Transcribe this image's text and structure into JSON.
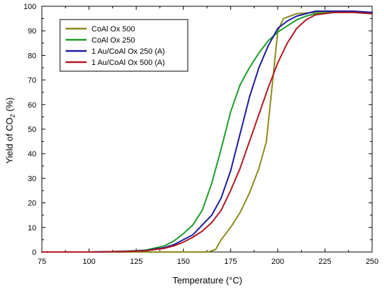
{
  "chart_data": {
    "type": "line",
    "title": "",
    "xlabel": "Temperature (°C)",
    "ylabel": "Yield of CO2 (%)",
    "ylabel_parts": {
      "before": "Yield of CO",
      "sub": "2",
      "after": " (%)"
    },
    "xlim": [
      75,
      250
    ],
    "ylim": [
      0,
      100
    ],
    "xticks": [
      75,
      100,
      125,
      150,
      175,
      200,
      225,
      250
    ],
    "yticks": [
      0,
      10,
      20,
      30,
      40,
      50,
      60,
      70,
      80,
      90,
      100
    ],
    "grid": false,
    "legend": {
      "position": "top-left"
    },
    "series": [
      {
        "name": "CoAl Ox 500",
        "color": "#8a8a1c",
        "x": [
          75,
          100,
          125,
          150,
          163,
          167,
          170,
          175,
          180,
          185,
          190,
          194,
          196,
          198,
          200,
          203,
          210,
          220,
          230,
          240,
          250
        ],
        "y": [
          0,
          0,
          0,
          0,
          0,
          1,
          5,
          10,
          16,
          24,
          34,
          45,
          60,
          75,
          90,
          95,
          97,
          97.5,
          98,
          97.5,
          97
        ]
      },
      {
        "name": "CoAl Ox 250",
        "color": "#1e9b28",
        "x": [
          75,
          100,
          110,
          120,
          130,
          140,
          145,
          150,
          155,
          160,
          165,
          170,
          175,
          180,
          185,
          190,
          195,
          200,
          205,
          210,
          215,
          220,
          230,
          240,
          250
        ],
        "y": [
          0,
          0,
          0.1,
          0.3,
          0.8,
          2.5,
          4.5,
          7.5,
          11,
          17,
          28,
          42,
          57,
          68,
          75,
          81,
          86,
          89.5,
          92,
          94.5,
          96,
          97,
          97.5,
          97.5,
          97
        ]
      },
      {
        "name": "1 Au/CoAl Ox 250 (A)",
        "color": "#1a1aa0",
        "x": [
          75,
          100,
          110,
          120,
          130,
          140,
          145,
          150,
          155,
          160,
          165,
          170,
          175,
          180,
          185,
          190,
          195,
          200,
          205,
          210,
          215,
          220,
          230,
          240,
          250
        ],
        "y": [
          0,
          0,
          0.1,
          0.3,
          0.6,
          1.8,
          3,
          5,
          7,
          11,
          15,
          22,
          33,
          48,
          63,
          75,
          84,
          91,
          94,
          96,
          97,
          98,
          98,
          98,
          97.5
        ]
      },
      {
        "name": "1 Au/CoAl Ox 500 (A)",
        "color": "#b01822",
        "x": [
          75,
          100,
          110,
          120,
          130,
          140,
          145,
          150,
          155,
          160,
          165,
          170,
          175,
          180,
          185,
          190,
          195,
          200,
          205,
          210,
          215,
          220,
          230,
          240,
          250
        ],
        "y": [
          0,
          0,
          0.1,
          0.2,
          0.5,
          1.5,
          2.5,
          4,
          6,
          8.5,
          12,
          17,
          25,
          34,
          45,
          56,
          67,
          77,
          85,
          91,
          94.5,
          96.5,
          97.5,
          97.5,
          97
        ]
      }
    ]
  }
}
